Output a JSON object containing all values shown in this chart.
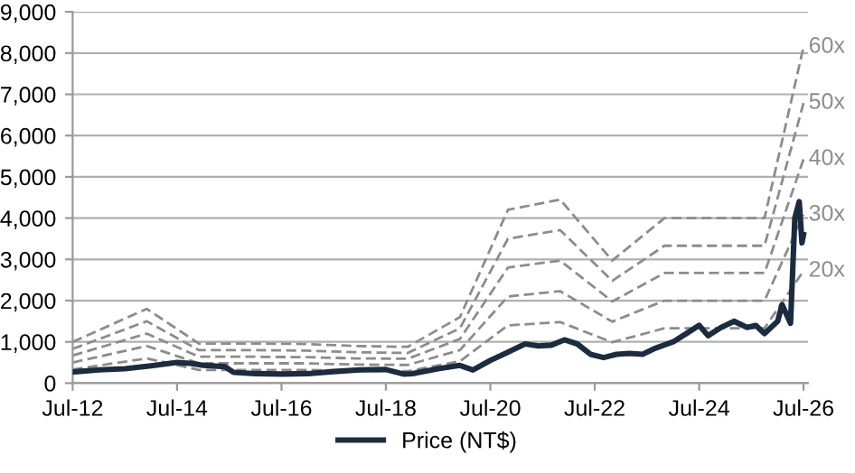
{
  "chart_data": {
    "type": "line",
    "series": [
      {
        "name": "60x",
        "color": "#8c8c8c",
        "line_style": "dashed",
        "x": [
          "2012-07",
          "2013-12",
          "2014-12",
          "2015-12",
          "2016-12",
          "2017-12",
          "2018-12",
          "2019-12",
          "2020-11",
          "2021-11",
          "2022-11",
          "2023-11",
          "2025-10",
          "2026-07"
        ],
        "values": [
          1000,
          1800,
          960,
          960,
          950,
          900,
          880,
          1600,
          4200,
          4450,
          2970,
          4000,
          4000,
          8150
        ]
      },
      {
        "name": "50x",
        "color": "#8c8c8c",
        "line_style": "dashed",
        "x": [
          "2012-07",
          "2013-12",
          "2014-12",
          "2015-12",
          "2016-12",
          "2017-12",
          "2018-12",
          "2019-12",
          "2020-11",
          "2021-11",
          "2022-11",
          "2023-11",
          "2025-10",
          "2026-07"
        ],
        "values": [
          830,
          1500,
          800,
          800,
          790,
          750,
          730,
          1330,
          3500,
          3710,
          2480,
          3330,
          3330,
          6790
        ]
      },
      {
        "name": "40x",
        "color": "#8c8c8c",
        "line_style": "dashed",
        "x": [
          "2012-07",
          "2013-12",
          "2014-12",
          "2015-12",
          "2016-12",
          "2017-12",
          "2018-12",
          "2019-12",
          "2020-11",
          "2021-11",
          "2022-11",
          "2023-11",
          "2025-10",
          "2026-07"
        ],
        "values": [
          670,
          1200,
          640,
          640,
          630,
          600,
          590,
          1070,
          2800,
          2970,
          1980,
          2670,
          2670,
          5430
        ]
      },
      {
        "name": "30x",
        "color": "#8c8c8c",
        "line_style": "dashed",
        "x": [
          "2012-07",
          "2013-12",
          "2014-12",
          "2015-12",
          "2016-12",
          "2017-12",
          "2018-12",
          "2019-12",
          "2020-11",
          "2021-11",
          "2022-11",
          "2023-11",
          "2025-10",
          "2026-07"
        ],
        "values": [
          500,
          900,
          480,
          480,
          480,
          450,
          440,
          800,
          2100,
          2230,
          1490,
          2000,
          2000,
          4080
        ]
      },
      {
        "name": "20x",
        "color": "#8c8c8c",
        "line_style": "dashed",
        "x": [
          "2012-07",
          "2013-12",
          "2014-12",
          "2015-12",
          "2016-12",
          "2017-12",
          "2018-12",
          "2019-12",
          "2020-11",
          "2021-11",
          "2022-11",
          "2023-11",
          "2025-10",
          "2026-07"
        ],
        "values": [
          330,
          600,
          320,
          320,
          320,
          300,
          290,
          530,
          1400,
          1480,
          990,
          1330,
          1330,
          2720
        ]
      },
      {
        "name": "Price (NT$)",
        "color": "#1c2b3f",
        "line_style": "solid",
        "x": [
          "2012-07",
          "2013-01",
          "2013-07",
          "2014-01",
          "2014-07",
          "2014-10",
          "2015-01",
          "2015-06",
          "2015-08",
          "2016-01",
          "2016-07",
          "2017-01",
          "2017-07",
          "2018-01",
          "2018-07",
          "2018-11",
          "2019-01",
          "2019-07",
          "2019-12",
          "2020-03",
          "2020-07",
          "2020-10",
          "2021-01",
          "2021-03",
          "2021-06",
          "2021-09",
          "2021-12",
          "2022-03",
          "2022-06",
          "2022-09",
          "2022-12",
          "2023-03",
          "2023-06",
          "2023-09",
          "2024-01",
          "2024-04",
          "2024-07",
          "2024-09",
          "2024-12",
          "2025-03",
          "2025-06",
          "2025-08",
          "2025-10",
          "2026-01",
          "2026-02",
          "2026-04",
          "2026-05",
          "2026-06",
          "2026-06-20",
          "2026-07"
        ],
        "values": [
          270,
          320,
          350,
          420,
          500,
          480,
          430,
          400,
          260,
          230,
          220,
          230,
          280,
          320,
          330,
          220,
          230,
          350,
          430,
          320,
          550,
          700,
          850,
          950,
          900,
          920,
          1050,
          950,
          700,
          620,
          700,
          720,
          700,
          850,
          1000,
          1200,
          1400,
          1150,
          1350,
          1500,
          1350,
          1400,
          1200,
          1500,
          1900,
          1450,
          4000,
          4400,
          3400,
          3600
        ]
      }
    ],
    "xlim": [
      "2012-07",
      "2026-08"
    ],
    "xticks": [
      {
        "value": "2012-07",
        "label": "Jul-12"
      },
      {
        "value": "2014-07",
        "label": "Jul-14"
      },
      {
        "value": "2016-07",
        "label": "Jul-16"
      },
      {
        "value": "2018-07",
        "label": "Jul-18"
      },
      {
        "value": "2020-07",
        "label": "Jul-20"
      },
      {
        "value": "2022-07",
        "label": "Jul-22"
      },
      {
        "value": "2024-07",
        "label": "Jul-24"
      },
      {
        "value": "2026-07",
        "label": "Jul-26"
      }
    ],
    "ylim": [
      0,
      9000
    ],
    "yticks": [
      {
        "value": 0,
        "label": "0"
      },
      {
        "value": 1000,
        "label": "1,000"
      },
      {
        "value": 2000,
        "label": "2,000"
      },
      {
        "value": 3000,
        "label": "3,000"
      },
      {
        "value": 4000,
        "label": "4,000"
      },
      {
        "value": 5000,
        "label": "5,000"
      },
      {
        "value": 6000,
        "label": "6,000"
      },
      {
        "value": 7000,
        "label": "7,000"
      },
      {
        "value": 8000,
        "label": "8,000"
      },
      {
        "value": 9000,
        "label": "9,000"
      }
    ],
    "grid": "y",
    "legend": "bottom"
  }
}
